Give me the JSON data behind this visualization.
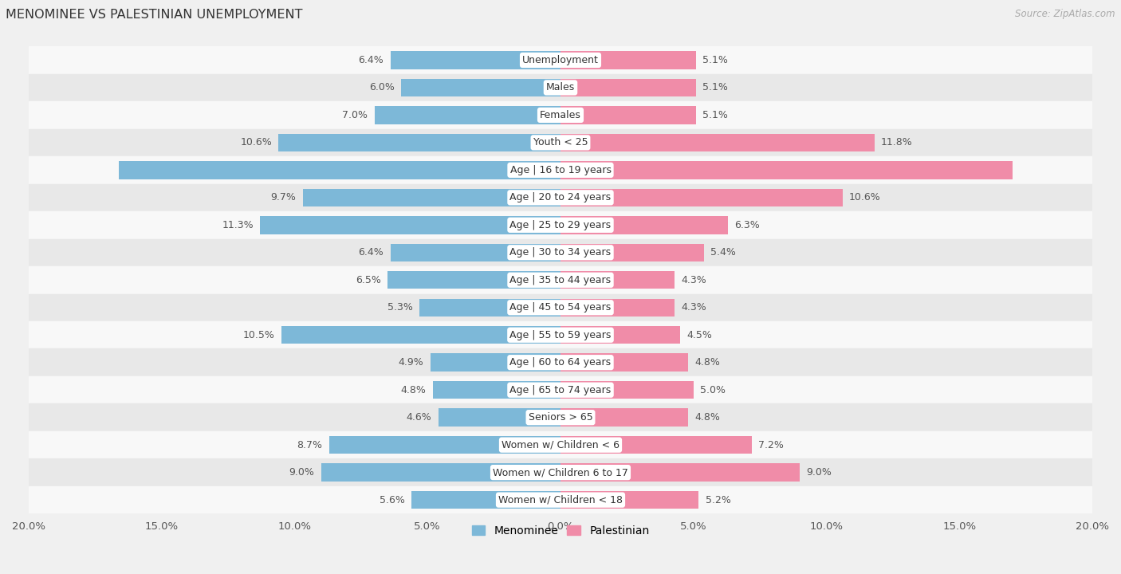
{
  "title": "MENOMINEE VS PALESTINIAN UNEMPLOYMENT",
  "source": "Source: ZipAtlas.com",
  "categories": [
    "Unemployment",
    "Males",
    "Females",
    "Youth < 25",
    "Age | 16 to 19 years",
    "Age | 20 to 24 years",
    "Age | 25 to 29 years",
    "Age | 30 to 34 years",
    "Age | 35 to 44 years",
    "Age | 45 to 54 years",
    "Age | 55 to 59 years",
    "Age | 60 to 64 years",
    "Age | 65 to 74 years",
    "Seniors > 65",
    "Women w/ Children < 6",
    "Women w/ Children 6 to 17",
    "Women w/ Children < 18"
  ],
  "menominee": [
    6.4,
    6.0,
    7.0,
    10.6,
    16.6,
    9.7,
    11.3,
    6.4,
    6.5,
    5.3,
    10.5,
    4.9,
    4.8,
    4.6,
    8.7,
    9.0,
    5.6
  ],
  "palestinian": [
    5.1,
    5.1,
    5.1,
    11.8,
    17.0,
    10.6,
    6.3,
    5.4,
    4.3,
    4.3,
    4.5,
    4.8,
    5.0,
    4.8,
    7.2,
    9.0,
    5.2
  ],
  "menominee_color": "#7db8d8",
  "palestinian_color": "#f08ca8",
  "background_color": "#f0f0f0",
  "row_color_light": "#f8f8f8",
  "row_color_dark": "#e8e8e8",
  "axis_limit": 20.0,
  "bar_height": 0.65,
  "label_fontsize": 9.0,
  "cat_fontsize": 9.0,
  "title_fontsize": 11.5,
  "legend_fontsize": 10,
  "white_label_threshold": 13.0
}
